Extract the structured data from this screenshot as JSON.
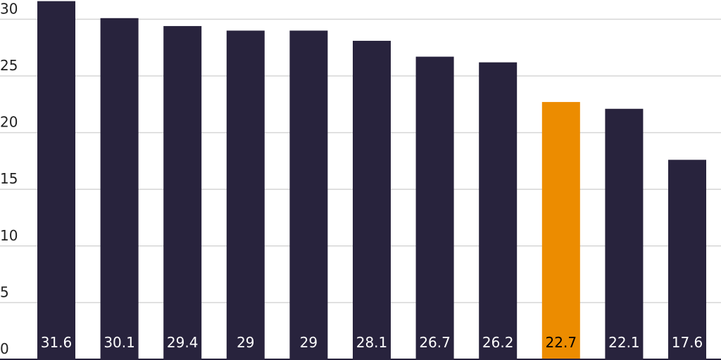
{
  "chart_data": {
    "type": "bar",
    "values": [
      31.6,
      30.1,
      29.4,
      29,
      29,
      28.1,
      26.7,
      26.2,
      22.7,
      22.1,
      17.6
    ],
    "colors": [
      "#28233d",
      "#28233d",
      "#28233d",
      "#28233d",
      "#28233d",
      "#28233d",
      "#28233d",
      "#28233d",
      "#ec8c00",
      "#28233d",
      "#28233d"
    ],
    "ylim": [
      0,
      31.7
    ],
    "yticks": [
      0,
      5,
      10,
      15,
      20,
      25,
      30
    ],
    "grid": true
  }
}
